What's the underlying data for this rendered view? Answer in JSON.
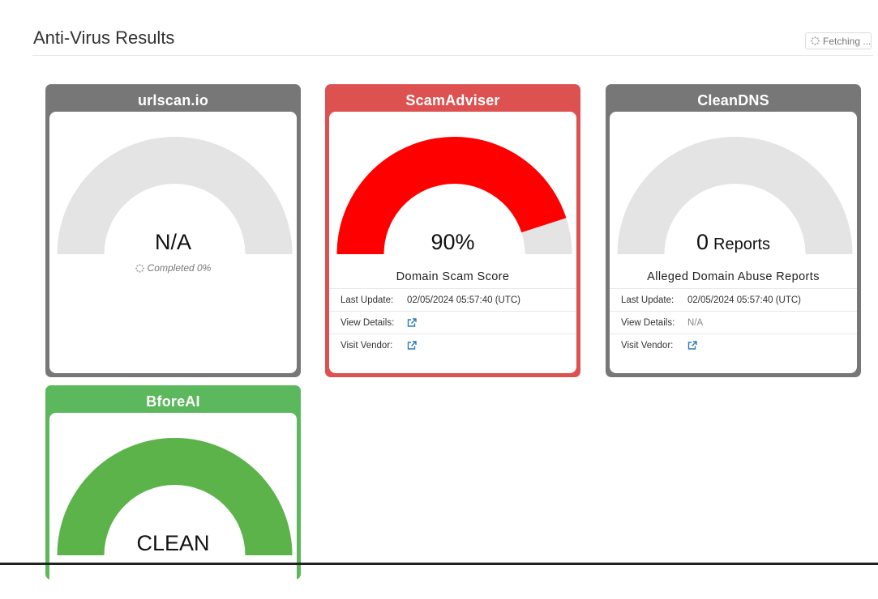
{
  "header": {
    "title": "Anti-Virus Results",
    "fetch_label": "Fetching ..."
  },
  "colors": {
    "grey_card": "#777777",
    "red_card": "#de5151",
    "green_card": "#5cb85c",
    "gauge_track": "#e4e4e4",
    "gauge_red": "#ff0000",
    "gauge_green": "#5cb34a",
    "link_blue": "#2a7ab8"
  },
  "cards": [
    {
      "name": "urlscan.io",
      "color": "#777777",
      "gauge_fill_fraction": 0,
      "value": "N/A",
      "status": "Completed 0%"
    },
    {
      "name": "ScamAdviser",
      "color": "#de5151",
      "gauge_fill_fraction": 0.9,
      "value": "90%",
      "caption": "Domain Scam Score",
      "rows": [
        {
          "label": "Last Update:",
          "value": "02/05/2024 05:57:40 (UTC)"
        },
        {
          "label": "View Details:",
          "icon": "external-link-icon"
        },
        {
          "label": "Visit Vendor:",
          "icon": "external-link-icon"
        }
      ]
    },
    {
      "name": "CleanDNS",
      "color": "#777777",
      "gauge_fill_fraction": 0,
      "value": "0",
      "unit": "Reports",
      "caption": "Alleged Domain Abuse Reports",
      "rows": [
        {
          "label": "Last Update:",
          "value": "02/05/2024 05:57:40 (UTC)"
        },
        {
          "label": "View Details:",
          "value": "N/A"
        },
        {
          "label": "Visit Vendor:",
          "icon": "external-link-icon"
        }
      ]
    },
    {
      "name": "BforeAI",
      "color": "#5cb85c",
      "gauge_fill_fraction": 1,
      "value": "CLEAN"
    }
  ]
}
